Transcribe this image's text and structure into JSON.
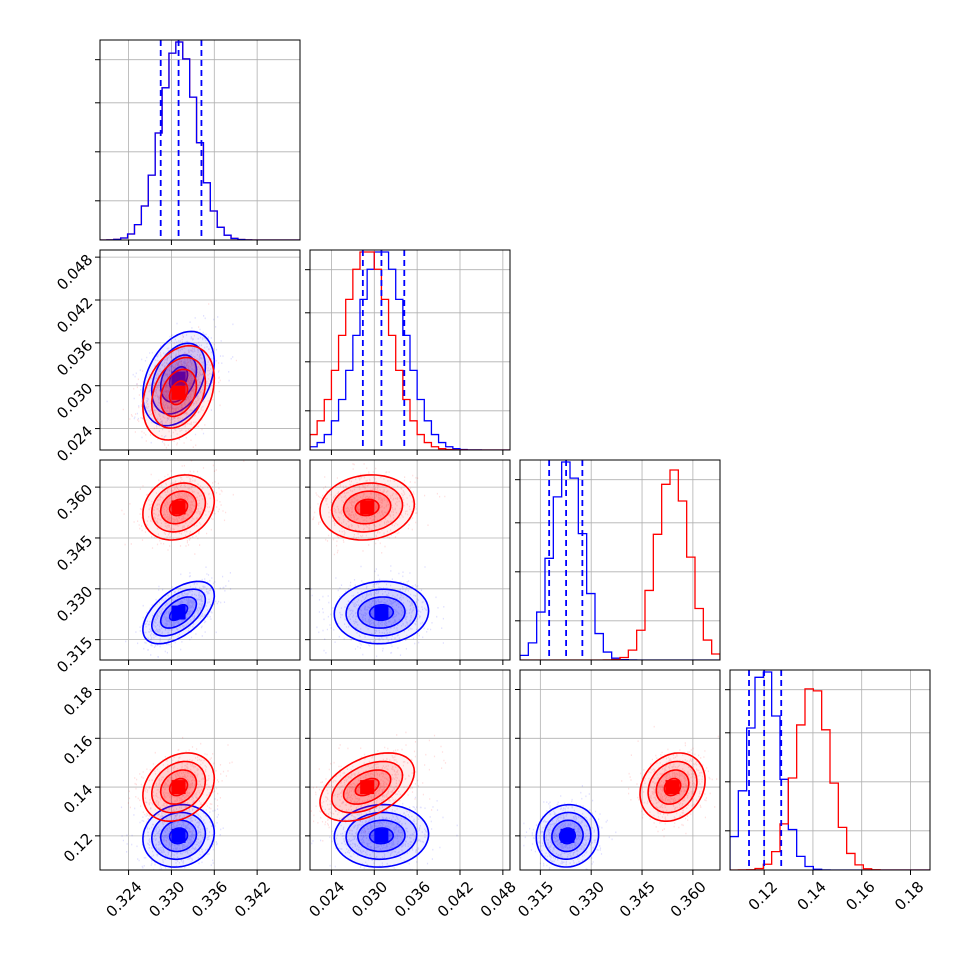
{
  "chart_data": {
    "type": "scatter",
    "subtype": "corner-plot",
    "grid": true,
    "colors": {
      "blue": "#0000ff",
      "red": "#ff0000",
      "grid": "#b0b0b0"
    },
    "series": [
      {
        "color": "#0000ff",
        "mean": [
          0.331,
          0.031,
          0.323,
          0.12
        ],
        "std": [
          0.0025,
          0.0033,
          0.0046,
          0.0064
        ],
        "quantiles": [
          [
            0.3285,
            0.331,
            0.3342
          ],
          [
            0.0284,
            0.031,
            0.0342
          ],
          [
            0.3176,
            0.3226,
            0.3274
          ],
          [
            0.1138,
            0.12,
            0.127
          ]
        ],
        "corr": [
          [
            1,
            0.35,
            0.55,
            0.1
          ],
          [
            0.35,
            1,
            0.05,
            0.05
          ],
          [
            0.55,
            0.05,
            1,
            0.05
          ],
          [
            0.1,
            0.05,
            0.05,
            1
          ]
        ]
      },
      {
        "color": "#ff0000",
        "mean": [
          0.331,
          0.029,
          0.354,
          0.14
        ],
        "std": [
          0.0025,
          0.0033,
          0.0048,
          0.007
        ],
        "corr": [
          [
            1,
            0.3,
            0.2,
            0.25
          ],
          [
            0.3,
            1,
            0.1,
            0.45
          ],
          [
            0.2,
            0.1,
            1,
            0.2
          ],
          [
            0.25,
            0.45,
            0.2,
            1
          ]
        ]
      }
    ],
    "params": [
      {
        "range": [
          0.32,
          0.348
        ],
        "ticks": [
          0.324,
          0.33,
          0.336,
          0.342
        ],
        "tick_labels": [
          "0.324",
          "0.330",
          "0.336",
          "0.342"
        ],
        "hist_bins": 29
      },
      {
        "range": [
          0.021,
          0.049
        ],
        "ticks": [
          0.024,
          0.03,
          0.036,
          0.042,
          0.048
        ],
        "tick_labels": [
          "0.024",
          "0.030",
          "0.036",
          "0.042",
          "0.048"
        ],
        "hist_bins": 28
      },
      {
        "range": [
          0.309,
          0.368
        ],
        "ticks": [
          0.315,
          0.33,
          0.345,
          0.36
        ],
        "tick_labels": [
          "0.315",
          "0.330",
          "0.345",
          "0.360"
        ],
        "hist_bins": 24
      },
      {
        "range": [
          0.106,
          0.188
        ],
        "ticks": [
          0.12,
          0.14,
          0.16,
          0.18
        ],
        "tick_labels": [
          "0.12",
          "0.14",
          "0.16",
          "0.18"
        ],
        "hist_bins": 24
      }
    ]
  }
}
